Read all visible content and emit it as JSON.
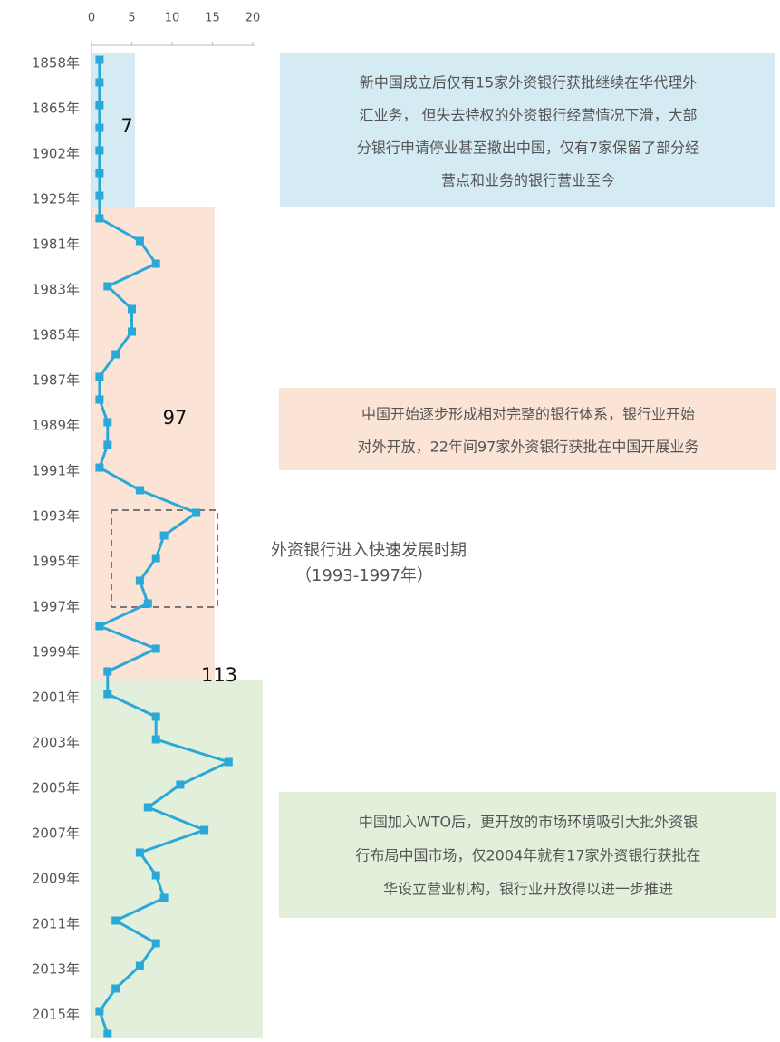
{
  "chart_data": {
    "type": "line",
    "categories": [
      "1858年",
      null,
      "1865年",
      null,
      "1902年",
      null,
      "1925年",
      null,
      "1981年",
      null,
      "1983年",
      null,
      "1985年",
      null,
      "1987年",
      null,
      "1989年",
      null,
      "1991年",
      null,
      "1993年",
      null,
      "1995年",
      null,
      "1997年",
      null,
      "1999年",
      null,
      "2001年",
      null,
      "2003年",
      null,
      "2005年",
      null,
      "2007年",
      null,
      "2009年",
      null,
      "2011年",
      null,
      "2013年",
      null,
      "2015年",
      null
    ],
    "values": [
      1,
      1,
      1,
      1,
      1,
      1,
      1,
      1,
      6,
      8,
      2,
      5,
      5,
      3,
      1,
      1,
      2,
      2,
      1,
      6,
      13,
      9,
      8,
      6,
      7,
      1,
      8,
      2,
      2,
      8,
      8,
      17,
      11,
      7,
      14,
      6,
      8,
      9,
      3,
      8,
      6,
      3,
      1,
      2
    ],
    "color": "#2aa8d8",
    "xlim": [
      0,
      20
    ],
    "xticks": [
      0,
      5,
      10,
      15,
      20
    ],
    "annotations": {
      "band_labels": [
        "7",
        "97",
        "113"
      ],
      "notes": [
        [
          "新中国成立后仅有15家外资银行获批继续在华代理外",
          "汇业务， 但失去特权的外资银行经营情况下滑，大部",
          "分银行申请停业甚至撤出中国，仅有7家保留了部分经",
          "营点和业务的银行营业至今"
        ],
        [
          "中国开始逐步形成相对完整的银行体系，银行业开始",
          "对外开放，22年间97家外资银行获批在中国开展业务"
        ],
        [
          "中国加入WTO后，更开放的市场环境吸引大批外资银",
          "行布局中国市场，仅2004年就有17家外资银行获批在",
          "华设立营业机构，银行业开放得以进一步推进"
        ]
      ],
      "callout": [
        "外资银行进入快速发展时期",
        "（1993-1997年）"
      ]
    }
  }
}
